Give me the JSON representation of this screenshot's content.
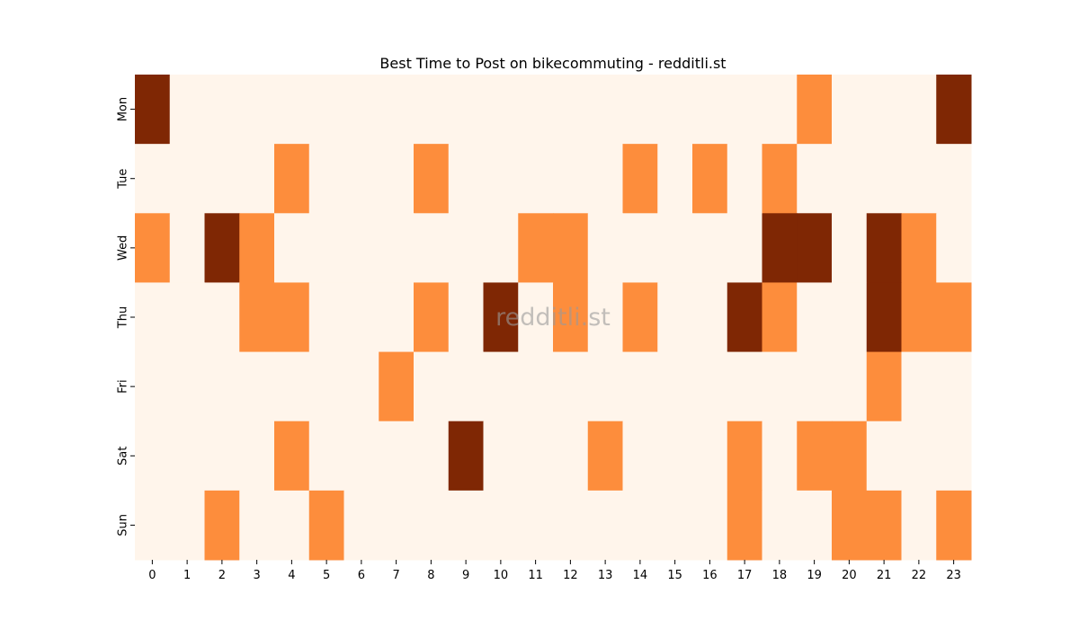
{
  "chart_data": {
    "type": "heatmap",
    "title": "Best Time to Post on bikecommuting - redditli.st",
    "watermark": "redditli.st",
    "xlabel": "",
    "ylabel": "",
    "x_categories": [
      "0",
      "1",
      "2",
      "3",
      "4",
      "5",
      "6",
      "7",
      "8",
      "9",
      "10",
      "11",
      "12",
      "13",
      "14",
      "15",
      "16",
      "17",
      "18",
      "19",
      "20",
      "21",
      "22",
      "23"
    ],
    "y_categories": [
      "Mon",
      "Tue",
      "Wed",
      "Thu",
      "Fri",
      "Sat",
      "Sun"
    ],
    "values": [
      [
        2,
        0,
        0,
        0,
        0,
        0,
        0,
        0,
        0,
        0,
        0,
        0,
        0,
        0,
        0,
        0,
        0,
        0,
        0,
        1,
        0,
        0,
        0,
        2
      ],
      [
        0,
        0,
        0,
        0,
        1,
        0,
        0,
        0,
        1,
        0,
        0,
        0,
        0,
        0,
        1,
        0,
        1,
        0,
        1,
        0,
        0,
        0,
        0,
        0
      ],
      [
        1,
        0,
        2,
        1,
        0,
        0,
        0,
        0,
        0,
        0,
        0,
        1,
        1,
        0,
        0,
        0,
        0,
        0,
        2,
        2,
        0,
        2,
        1,
        0
      ],
      [
        0,
        0,
        0,
        1,
        1,
        0,
        0,
        0,
        1,
        0,
        2,
        0,
        1,
        0,
        1,
        0,
        0,
        2,
        1,
        0,
        0,
        2,
        1,
        1
      ],
      [
        0,
        0,
        0,
        0,
        0,
        0,
        0,
        1,
        0,
        0,
        0,
        0,
        0,
        0,
        0,
        0,
        0,
        0,
        0,
        0,
        0,
        1,
        0,
        0
      ],
      [
        0,
        0,
        0,
        0,
        1,
        0,
        0,
        0,
        0,
        2,
        0,
        0,
        0,
        1,
        0,
        0,
        0,
        1,
        0,
        1,
        1,
        0,
        0,
        0
      ],
      [
        0,
        0,
        1,
        0,
        0,
        1,
        0,
        0,
        0,
        0,
        0,
        0,
        0,
        0,
        0,
        0,
        0,
        1,
        0,
        0,
        1,
        1,
        0,
        1
      ]
    ],
    "vmin": 0,
    "vmax": 2,
    "colormap": "Oranges",
    "colors": {
      "low": "#fff5eb",
      "mid": "#fd8d3c",
      "high": "#7f2704"
    },
    "grid": false,
    "legend": "none"
  }
}
